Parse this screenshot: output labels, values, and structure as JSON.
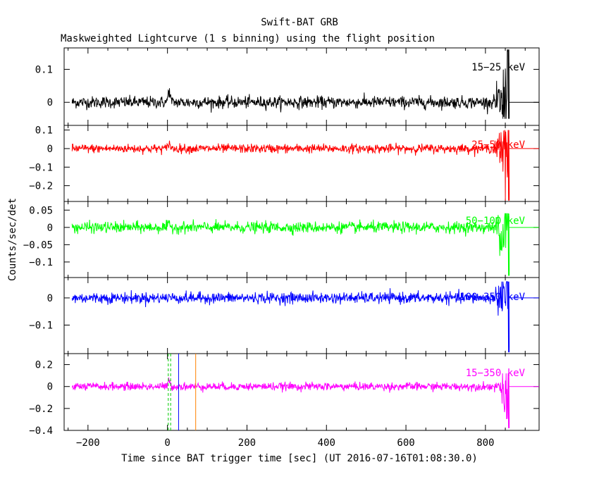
{
  "title": "Swift-BAT GRB",
  "subtitle": "Maskweighted Lightcurve (1 s binning) using the flight position",
  "xlabel": "Time since BAT trigger time [sec] (UT 2016-07-16T01:08:30.0)",
  "ylabel": "Counts/sec/det",
  "chart_data": {
    "type": "line",
    "title": "Swift-BAT GRB",
    "subtitle": "Maskweighted Lightcurve (1 s binning) using the flight position",
    "xlabel": "Time since BAT trigger time [sec] (UT 2016-07-16T01:08:30.0)",
    "ylabel": "Counts/sec/det",
    "xlim": [
      -260,
      935
    ],
    "x_ticks": [
      -200,
      0,
      200,
      400,
      600,
      800
    ],
    "x_tick_labels": [
      "−200",
      "0",
      "200",
      "400",
      "600",
      "800"
    ],
    "data_range": [
      -240,
      860
    ],
    "series": [
      {
        "name": "15−25 keV",
        "color": "#000000",
        "ylim": [
          -0.07,
          0.165
        ],
        "yticks": [
          0,
          0.1
        ],
        "ytick_labels": [
          "0",
          "0.1"
        ],
        "noise": 0.009,
        "burst_peak": 0.035,
        "end_excursion": [
          0.16,
          -0.05
        ]
      },
      {
        "name": "25−50 keV",
        "color": "#ff0000",
        "ylim": [
          -0.285,
          0.125
        ],
        "yticks": [
          -0.2,
          -0.1,
          0,
          0.1
        ],
        "ytick_labels": [
          "−0.2",
          "−0.1",
          "0",
          "0.1"
        ],
        "noise": 0.012,
        "burst_peak": 0.03,
        "end_excursion": [
          0.1,
          -0.28
        ]
      },
      {
        "name": "50−100 keV",
        "color": "#00ff00",
        "ylim": [
          -0.145,
          0.075
        ],
        "yticks": [
          -0.1,
          -0.05,
          0,
          0.05
        ],
        "ytick_labels": [
          "−0.1",
          "−0.05",
          "0",
          "0.05"
        ],
        "noise": 0.008,
        "burst_peak": 0.008,
        "end_excursion": [
          0.04,
          -0.14
        ]
      },
      {
        "name": "100−350 keV",
        "color": "#0000ff",
        "ylim": [
          -0.205,
          0.075
        ],
        "yticks": [
          -0.1,
          0
        ],
        "ytick_labels": [
          "−0.1",
          "0"
        ],
        "noise": 0.01,
        "burst_peak": 0.006,
        "end_excursion": [
          0.06,
          -0.2
        ]
      },
      {
        "name": "15−350 keV",
        "color": "#ff00ff",
        "ylim": [
          -0.4,
          0.3
        ],
        "yticks": [
          -0.4,
          -0.2,
          0,
          0.2
        ],
        "ytick_labels": [
          "−0.4",
          "−0.2",
          "0",
          "0.2"
        ],
        "noise": 0.018,
        "burst_peak": 0.05,
        "end_excursion": [
          0.12,
          -0.38
        ]
      }
    ],
    "markers": [
      {
        "x": 2,
        "color": "#00cc00",
        "style": "dashed"
      },
      {
        "x": 8,
        "color": "#00cc00",
        "style": "dashed"
      },
      {
        "x": 28,
        "color": "#0000ff",
        "style": "solid"
      },
      {
        "x": 71,
        "color": "#ff8000",
        "style": "solid"
      }
    ]
  }
}
